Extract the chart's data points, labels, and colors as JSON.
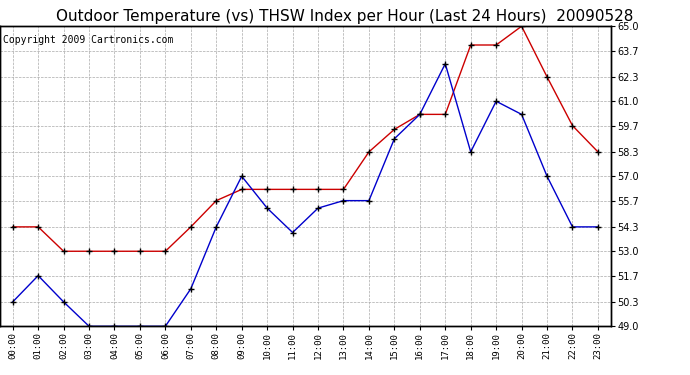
{
  "title": "Outdoor Temperature (vs) THSW Index per Hour (Last 24 Hours)  20090528",
  "copyright": "Copyright 2009 Cartronics.com",
  "hours": [
    0,
    1,
    2,
    3,
    4,
    5,
    6,
    7,
    8,
    9,
    10,
    11,
    12,
    13,
    14,
    15,
    16,
    17,
    18,
    19,
    20,
    21,
    22,
    23
  ],
  "red_data": [
    54.3,
    54.3,
    53.0,
    53.0,
    53.0,
    53.0,
    53.0,
    54.3,
    55.7,
    56.3,
    56.3,
    56.3,
    56.3,
    56.3,
    58.3,
    59.5,
    60.3,
    60.3,
    64.0,
    64.0,
    65.0,
    62.3,
    59.7,
    58.3
  ],
  "blue_data": [
    50.3,
    51.7,
    50.3,
    49.0,
    49.0,
    49.0,
    49.0,
    51.0,
    54.3,
    57.0,
    55.3,
    54.0,
    55.3,
    55.7,
    55.7,
    59.0,
    60.3,
    63.0,
    58.3,
    61.0,
    60.3,
    57.0,
    54.3,
    54.3
  ],
  "ylim": [
    49.0,
    65.0
  ],
  "yticks": [
    49.0,
    50.3,
    51.7,
    53.0,
    54.3,
    55.7,
    57.0,
    58.3,
    59.7,
    61.0,
    62.3,
    63.7,
    65.0
  ],
  "red_color": "#cc0000",
  "blue_color": "#0000cc",
  "background_color": "#ffffff",
  "grid_color": "#aaaaaa",
  "title_fontsize": 11,
  "copyright_fontsize": 7
}
